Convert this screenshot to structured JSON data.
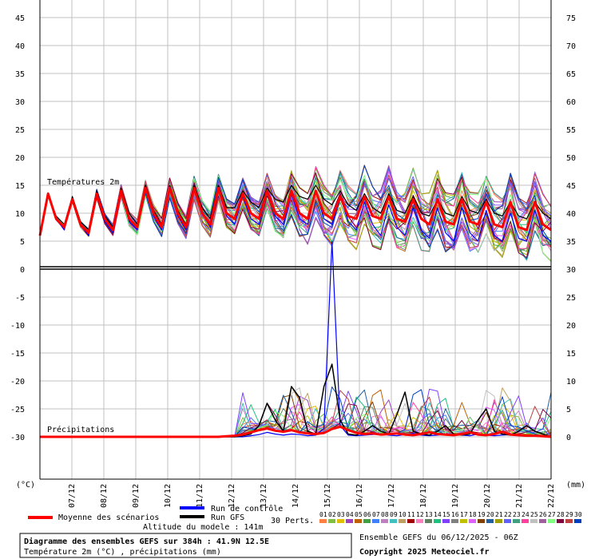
{
  "chart_data": {
    "type": "line",
    "title": "Diagramme des ensembles GEFS sur 384h : 41.9N 12.5E",
    "subtitle": "Température 2m (°C) , précipitations (mm)",
    "altitude": "Altitude du modele : 141m",
    "run_info": "Ensemble GEFS du 06/12/2025 - 06Z",
    "copyright": "Copyright 2025 Meteociel.fr",
    "panel_temperature_label": "Températures 2m",
    "panel_precip_label": "Précipitations",
    "left_unit": "(°C)",
    "right_unit": "(mm)",
    "left_ticks": [
      "45",
      "40",
      "35",
      "30",
      "25",
      "20",
      "15",
      "10",
      "5",
      "0",
      "-5",
      "-10",
      "-15",
      "-20",
      "-25",
      "-30"
    ],
    "right_ticks": [
      "75",
      "70",
      "65",
      "60",
      "55",
      "50",
      "45",
      "40",
      "35",
      "30",
      "25",
      "20",
      "15",
      "10",
      "5",
      "0"
    ],
    "x_tick_labels": [
      "07/12",
      "08/12",
      "09/12",
      "10/12",
      "11/12",
      "12/12",
      "13/12",
      "14/12",
      "15/12",
      "16/12",
      "17/12",
      "18/12",
      "19/12",
      "20/12",
      "21/12",
      "22/12"
    ],
    "legend": {
      "mean": "Moyenne des scénarios",
      "control": "Run de contrôle",
      "gfs": "Run GFS",
      "perts": "30 Perts.",
      "member_labels": [
        "01",
        "02",
        "03",
        "04",
        "05",
        "06",
        "07",
        "08",
        "09",
        "10",
        "11",
        "12",
        "13",
        "14",
        "15",
        "16",
        "17",
        "18",
        "19",
        "20",
        "21",
        "22",
        "23",
        "24",
        "25",
        "26",
        "27",
        "28",
        "29",
        "30"
      ]
    },
    "colors": {
      "mean": "#ff0000",
      "control": "#0000ff",
      "gfs": "#000000",
      "grid": "#c0c0c0",
      "members": [
        "#ff8040",
        "#80c040",
        "#e0c000",
        "#a040c0",
        "#c06000",
        "#40a040",
        "#4080ff",
        "#c080c0",
        "#40c0c0",
        "#c0a060",
        "#a00000",
        "#ff80c0",
        "#608060",
        "#20c080",
        "#8040ff",
        "#808080",
        "#c0c000",
        "#e060ff",
        "#804000",
        "#2060a0",
        "#a0a000",
        "#6060ff",
        "#40a080",
        "#ff40a0",
        "#c0c0c0",
        "#a060a0",
        "#80ff80",
        "#800040",
        "#c04040",
        "#0040c0"
      ]
    },
    "mean_temperature": [
      6,
      13.5,
      9,
      7.5,
      12.5,
      8,
      6.5,
      13.5,
      9,
      7,
      14,
      9,
      7.5,
      14.5,
      10,
      7.5,
      14.5,
      10,
      7.5,
      14.5,
      10,
      8,
      14.5,
      10,
      9,
      13.5,
      10,
      9,
      14,
      10,
      9,
      14,
      10,
      9,
      14,
      10,
      9,
      13,
      9.5,
      9,
      13,
      9.5,
      9,
      13,
      9,
      8.5,
      12.5,
      9,
      8,
      12.5,
      8.5,
      8,
      12.5,
      8.5,
      8,
      12,
      8,
      7.5,
      12,
      7.5,
      7,
      12,
      8,
      7
    ],
    "control_temperature": [
      6,
      13.5,
      9,
      7,
      12.5,
      8,
      6,
      13.5,
      8.5,
      6.5,
      14,
      8.5,
      7,
      14.5,
      9.5,
      7,
      14.5,
      9.5,
      7,
      15,
      10,
      7.5,
      14.5,
      9.5,
      8,
      13,
      9,
      8,
      14,
      9.5,
      8,
      13.5,
      9,
      8,
      14,
      9,
      8,
      13,
      8.5,
      7,
      12,
      8,
      6,
      11.5,
      7.5,
      6,
      11,
      7,
      5.5,
      11,
      6.5,
      5,
      11,
      6.5,
      5,
      10.5,
      6,
      5,
      10,
      5.5,
      5,
      10.5,
      6,
      5
    ],
    "gfs_temperature": [
      6,
      13.5,
      9.5,
      8,
      13,
      8.5,
      7,
      14,
      9.5,
      7.5,
      14.5,
      10,
      8,
      15,
      10.5,
      8,
      15,
      10.5,
      8,
      15,
      11,
      9,
      15,
      11,
      11,
      14,
      12,
      11,
      14.5,
      12.5,
      12,
      15,
      13,
      12.5,
      15,
      12.5,
      11.5,
      14,
      11.5,
      10.5,
      13.5,
      11,
      10,
      13.5,
      10.5,
      10,
      13,
      10,
      9.5,
      12.5,
      10,
      9.5,
      13,
      10.5,
      10,
      12.5,
      10,
      9.5,
      12,
      9.5,
      9,
      12,
      10,
      9
    ],
    "mean_precipitation": [
      0,
      0,
      0,
      0,
      0,
      0,
      0,
      0,
      0,
      0,
      0,
      0,
      0,
      0,
      0,
      0,
      0,
      0,
      0,
      0,
      0,
      0,
      0,
      0.1,
      0.2,
      0.4,
      0.8,
      1.2,
      1.5,
      1.1,
      0.9,
      1.2,
      0.8,
      0.6,
      0.5,
      0.7,
      1.4,
      1.8,
      1.2,
      0.7,
      0.5,
      0.6,
      0.4,
      0.5,
      0.6,
      0.4,
      0.3,
      0.5,
      0.8,
      0.5,
      0.4,
      0.3,
      0.5,
      0.8,
      0.4,
      0.3,
      0.5,
      0.9,
      0.4,
      0.3,
      0.2,
      0.2,
      0.1,
      0
    ],
    "control_precipitation": [
      0,
      0,
      0,
      0,
      0,
      0,
      0,
      0,
      0,
      0,
      0,
      0,
      0,
      0,
      0,
      0,
      0,
      0,
      0,
      0,
      0,
      0,
      0,
      0,
      0,
      0,
      0.2,
      0.4,
      0.8,
      0.5,
      0.3,
      0.5,
      0.4,
      0.2,
      0.3,
      1.5,
      35,
      2,
      0.3,
      0.2,
      0.3,
      0.4,
      0.5,
      0.3,
      0.2,
      0.4,
      0.6,
      0.3,
      0.2,
      0.3,
      0.5,
      0.4,
      0.3,
      0.2,
      0.5,
      0.3,
      0.2,
      0.3,
      0.4,
      0.2,
      0.1,
      0.2,
      0.1,
      0
    ],
    "gfs_precipitation": [
      0,
      0,
      0,
      0,
      0,
      0,
      0,
      0,
      0,
      0,
      0,
      0,
      0,
      0,
      0,
      0,
      0,
      0,
      0,
      0,
      0,
      0,
      0,
      0,
      0,
      0.2,
      0.5,
      2,
      6,
      3,
      1,
      9,
      7,
      1,
      0.5,
      9,
      13,
      3,
      0.5,
      0.3,
      1,
      2,
      1,
      0.5,
      4,
      8,
      1,
      0.5,
      0.3,
      1,
      2,
      0.5,
      0.3,
      0.5,
      3,
      5,
      1,
      0.5,
      0.3,
      1,
      2,
      1,
      0.5,
      0
    ],
    "x_start": "06/12/2025 06Z",
    "x_step_hours": 6
  }
}
